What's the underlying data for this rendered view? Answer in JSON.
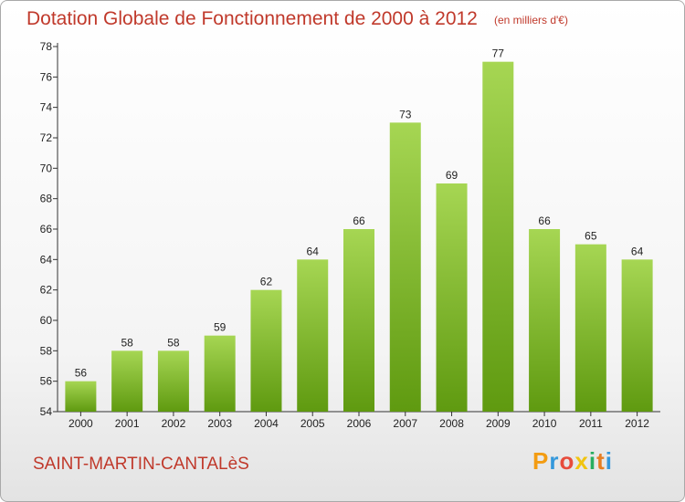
{
  "title": "Dotation Globale de Fonctionnement de 2000 à 2012",
  "subtitle": "(en milliers d'€)",
  "commune": "SAINT-MARTIN-CANTALèS",
  "logo": {
    "letters": [
      "P",
      "r",
      "o",
      "x",
      "i",
      "t",
      "i"
    ],
    "colors": [
      "#f39c12",
      "#3498db",
      "#e74c3c",
      "#f1c40f",
      "#27ae60",
      "#e67e22",
      "#3498db"
    ]
  },
  "colors": {
    "bar_top": "#a6d653",
    "bar_bottom": "#5f9a10",
    "text_accent": "#c0392b",
    "grid": "#cccccc"
  },
  "chart_data": {
    "type": "bar",
    "categories": [
      "2000",
      "2001",
      "2002",
      "2003",
      "2004",
      "2005",
      "2006",
      "2007",
      "2008",
      "2009",
      "2010",
      "2011",
      "2012"
    ],
    "values": [
      56,
      58,
      58,
      59,
      62,
      64,
      66,
      73,
      69,
      77,
      66,
      65,
      64
    ],
    "ylim": [
      54,
      78
    ],
    "yticks": [
      54,
      56,
      58,
      60,
      62,
      64,
      66,
      68,
      70,
      72,
      74,
      76,
      78
    ],
    "grid": false,
    "legend": "none"
  }
}
